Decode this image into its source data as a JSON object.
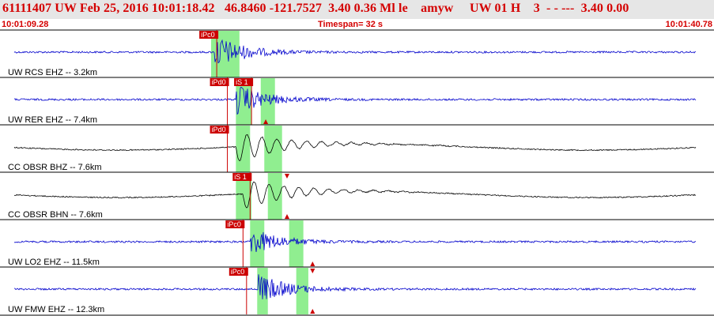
{
  "header": {
    "title": "61111407 UW Feb 25, 2016 10:01:18.42   46.8460 -121.7527  3.40 0.36 Ml le    amyw     UW 01 H    3  - - ---  3.40 0.00",
    "start_time": "10:01:09.28",
    "timespan": "Timespan=  32 s",
    "end_time": "10:01:40.78"
  },
  "colors": {
    "header_text": "#d40000",
    "trace_blue": "#0000cc",
    "trace_black": "#000000",
    "pick_marker": "#cc0000",
    "window_green": "#90ee90"
  },
  "panels": [
    {
      "label": "UW RCS EHZ -- 3.2km",
      "color": "blue",
      "amp": 10,
      "kind": "hf",
      "onset": 0.3,
      "picks": [
        {
          "label": "iPc0",
          "x": 0.303
        }
      ],
      "green": [
        [
          0.295,
          0.335
        ]
      ],
      "triangles": []
    },
    {
      "label": "UW RER EHZ -- 7.4km",
      "color": "blue",
      "amp": 9,
      "kind": "hf",
      "onset": 0.33,
      "picks": [
        {
          "label": "iPd0",
          "x": 0.318
        },
        {
          "label": "iS 1",
          "x": 0.352
        }
      ],
      "green": [
        [
          0.33,
          0.352
        ],
        [
          0.365,
          0.385
        ]
      ],
      "triangles": [
        {
          "x": 0.372,
          "dir": "up"
        }
      ]
    },
    {
      "label": "CC OBSR BHZ -- 7.6km",
      "color": "black",
      "amp": 12,
      "kind": "lp",
      "onset": 0.33,
      "picks": [
        {
          "label": "iPd0",
          "x": 0.318
        }
      ],
      "green": [
        [
          0.33,
          0.35
        ],
        [
          0.37,
          0.395
        ]
      ],
      "triangles": []
    },
    {
      "label": "CC OBSR BHN -- 7.6km",
      "color": "black",
      "amp": 12,
      "kind": "lp",
      "onset": 0.34,
      "picks": [
        {
          "label": "iS 1",
          "x": 0.35
        }
      ],
      "green": [
        [
          0.33,
          0.352
        ],
        [
          0.375,
          0.395
        ]
      ],
      "triangles": [
        {
          "x": 0.402,
          "dir": "down"
        },
        {
          "x": 0.402,
          "dir": "up"
        }
      ]
    },
    {
      "label": "UW LO2 EHZ -- 11.5km",
      "color": "blue",
      "amp": 8,
      "kind": "hf",
      "onset": 0.35,
      "picks": [
        {
          "label": "iPc0",
          "x": 0.34
        }
      ],
      "green": [
        [
          0.35,
          0.37
        ],
        [
          0.405,
          0.425
        ]
      ],
      "triangles": [
        {
          "x": 0.438,
          "dir": "up"
        }
      ]
    },
    {
      "label": "UW FMW EHZ -- 12.3km",
      "color": "blue",
      "amp": 9,
      "kind": "hf",
      "onset": 0.36,
      "picks": [
        {
          "label": "iPc0",
          "x": 0.345
        }
      ],
      "green": [
        [
          0.36,
          0.375
        ],
        [
          0.415,
          0.432
        ]
      ],
      "triangles": [
        {
          "x": 0.438,
          "dir": "down"
        },
        {
          "x": 0.438,
          "dir": "up"
        }
      ]
    }
  ]
}
